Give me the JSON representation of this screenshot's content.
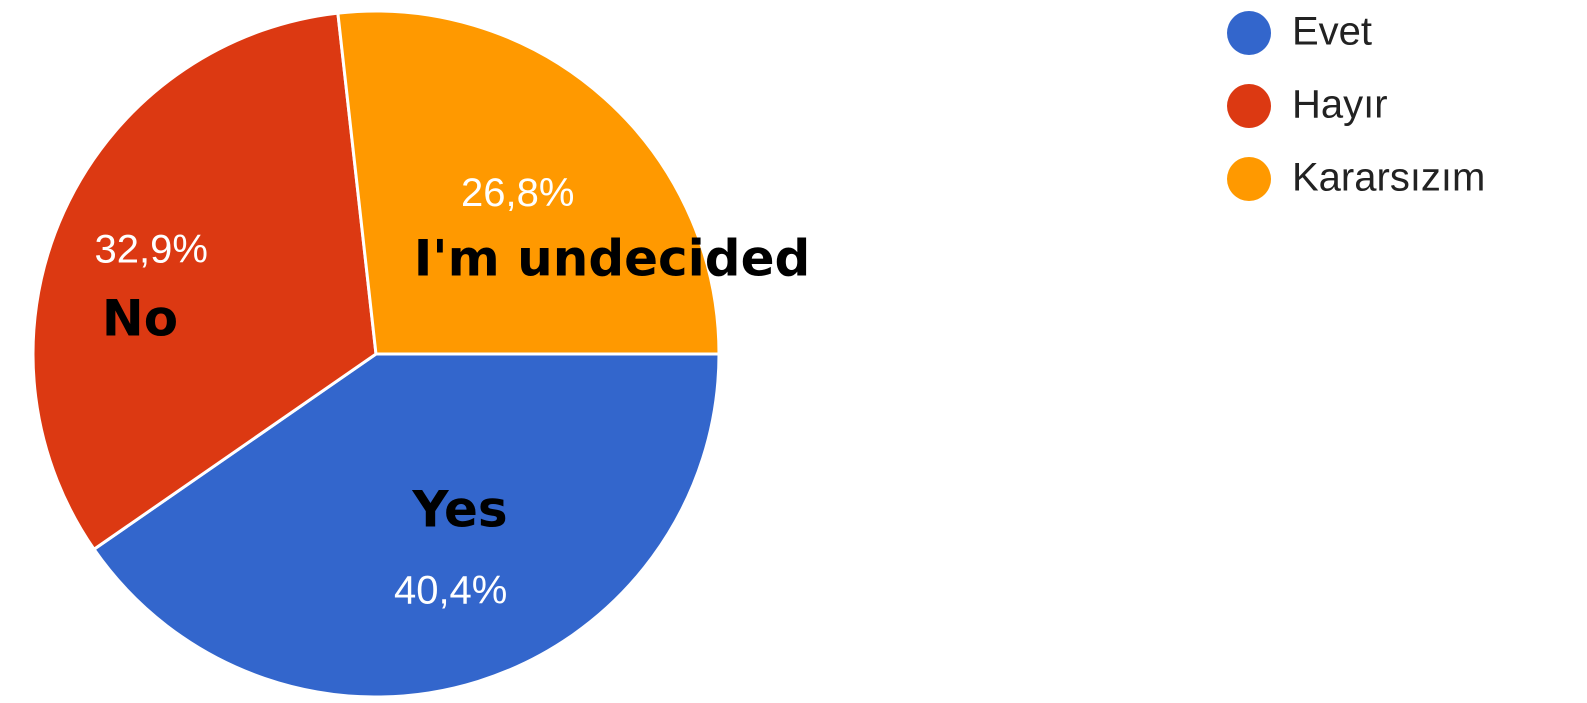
{
  "chart_data": {
    "type": "pie",
    "slices": [
      {
        "label": "Evet",
        "value": 40.4,
        "value_label": "40,4%",
        "color": "#3366cc",
        "annotation": "Yes"
      },
      {
        "label": "Hayır",
        "value": 32.9,
        "value_label": "32,9%",
        "color": "#dc3912",
        "annotation": "No"
      },
      {
        "label": "Kararsızım",
        "value": 26.8,
        "value_label": "26,8%",
        "color": "#ff9900",
        "annotation": "I'm undecided"
      }
    ],
    "legend_position": "top-right"
  }
}
